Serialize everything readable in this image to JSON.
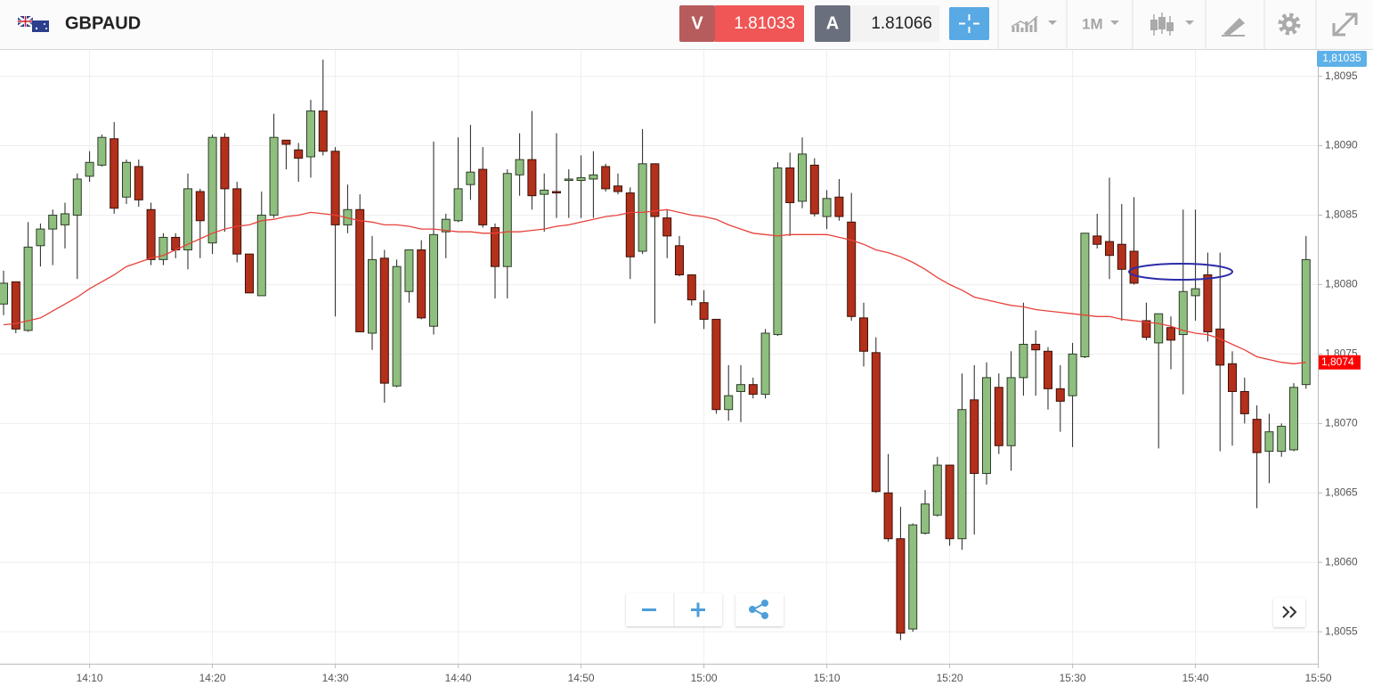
{
  "toolbar": {
    "symbol": "GBPAUD",
    "bid_label": "V",
    "bid": "1.81033",
    "ask_label": "A",
    "ask": "1.81066",
    "timeframe": "1M"
  },
  "chart_data": {
    "type": "candlestick",
    "categories": [
      "14:03",
      "14:04",
      "14:05",
      "14:06",
      "14:07",
      "14:08",
      "14:09",
      "14:10",
      "14:11",
      "14:12",
      "14:13",
      "14:14",
      "14:15",
      "14:16",
      "14:17",
      "14:18",
      "14:19",
      "14:20",
      "14:21",
      "14:22",
      "14:23",
      "14:24",
      "14:25",
      "14:26",
      "14:27",
      "14:28",
      "14:29",
      "14:30",
      "14:31",
      "14:32",
      "14:33",
      "14:34",
      "14:35",
      "14:36",
      "14:37",
      "14:38",
      "14:39",
      "14:40",
      "14:41",
      "14:42",
      "14:43",
      "14:44",
      "14:45",
      "14:46",
      "14:47",
      "14:48",
      "14:49",
      "14:50",
      "14:51",
      "14:52",
      "14:53",
      "14:54",
      "14:55",
      "14:56",
      "14:57",
      "14:58",
      "14:59",
      "15:00",
      "15:01",
      "15:02",
      "15:03",
      "15:04",
      "15:05",
      "15:06",
      "15:07",
      "15:08",
      "15:09",
      "15:10",
      "15:11",
      "15:12",
      "15:13",
      "15:14",
      "15:15",
      "15:16",
      "15:17",
      "15:18",
      "15:19",
      "15:20",
      "15:21",
      "15:22",
      "15:23",
      "15:24",
      "15:25",
      "15:26",
      "15:27",
      "15:28",
      "15:29",
      "15:30",
      "15:31",
      "15:32",
      "15:33",
      "15:34",
      "15:35",
      "15:36",
      "15:37",
      "15:38",
      "15:39",
      "15:40",
      "15:41",
      "15:42",
      "15:43",
      "15:44",
      "15:45",
      "15:46",
      "15:47",
      "15:48",
      "15:49"
    ],
    "open": [
      1.80786,
      1.80802,
      1.80767,
      1.80828,
      1.8084,
      1.80843,
      1.8085,
      1.80878,
      1.80886,
      1.80905,
      1.80863,
      1.80885,
      1.80854,
      1.80818,
      1.80834,
      1.80825,
      1.80867,
      1.8083,
      1.80906,
      1.80869,
      1.80822,
      1.80792,
      1.8085,
      1.80904,
      1.80897,
      1.80892,
      1.80925,
      1.80896,
      1.80843,
      1.80854,
      1.80765,
      1.80819,
      1.80727,
      1.80795,
      1.80825,
      1.8077,
      1.80838,
      1.80846,
      1.80872,
      1.80883,
      1.80841,
      1.80813,
      1.80879,
      1.8089,
      1.80865,
      1.80867,
      1.80875,
      1.80875,
      1.80876,
      1.80885,
      1.80871,
      1.80866,
      1.80824,
      1.80887,
      1.80848,
      1.80828,
      1.80807,
      1.80787,
      1.80775,
      1.8071,
      1.80723,
      1.80728,
      1.80721,
      1.80764,
      1.80884,
      1.8086,
      1.80886,
      1.80849,
      1.80863,
      1.80845,
      1.80776,
      1.80751,
      1.8065,
      1.80617,
      1.80552,
      1.80621,
      1.80634,
      1.8067,
      1.80617,
      1.80717,
      1.80664,
      1.80726,
      1.80684,
      1.80733,
      1.80757,
      1.80752,
      1.80725,
      1.8072,
      1.80748,
      1.80835,
      1.80831,
      1.80829,
      1.80824,
      1.80774,
      1.80758,
      1.80769,
      1.80764,
      1.80792,
      1.80807,
      1.80768,
      1.80743,
      1.80723,
      1.80703,
      1.8068,
      1.8068,
      1.80681,
      1.80728
    ],
    "high": [
      1.8081,
      1.80802,
      1.80845,
      1.80844,
      1.80854,
      1.80859,
      1.8088,
      1.80896,
      1.80908,
      1.80917,
      1.8089,
      1.8089,
      1.80859,
      1.80837,
      1.80837,
      1.8088,
      1.80869,
      1.80908,
      1.80909,
      1.80874,
      1.80822,
      1.80867,
      1.80923,
      1.80904,
      1.80902,
      1.80933,
      1.80962,
      1.80899,
      1.80872,
      1.80865,
      1.80835,
      1.80825,
      1.80818,
      1.80825,
      1.80832,
      1.80903,
      1.80851,
      1.80906,
      1.80915,
      1.80899,
      1.80844,
      1.80883,
      1.80909,
      1.80925,
      1.8088,
      1.80909,
      1.80883,
      1.80893,
      1.80896,
      1.80887,
      1.8088,
      1.8087,
      1.80912,
      1.80887,
      1.80854,
      1.80835,
      1.80807,
      1.80796,
      1.80775,
      1.80742,
      1.80742,
      1.80733,
      1.80768,
      1.80888,
      1.80895,
      1.80906,
      1.80891,
      1.80868,
      1.80876,
      1.80866,
      1.80787,
      1.80762,
      1.80678,
      1.8064,
      1.80628,
      1.80652,
      1.80676,
      1.8067,
      1.80736,
      1.80742,
      1.80744,
      1.80736,
      1.80752,
      1.80787,
      1.80767,
      1.80755,
      1.80742,
      1.80758,
      1.80837,
      1.80851,
      1.80877,
      1.80858,
      1.80863,
      1.80787,
      1.80779,
      1.80777,
      1.80854,
      1.80854,
      1.80823,
      1.80823,
      1.80752,
      1.80733,
      1.80713,
      1.80707,
      1.807,
      1.80729,
      1.80835
    ],
    "low": [
      1.80778,
      1.80765,
      1.80766,
      1.80813,
      1.80814,
      1.80826,
      1.80804,
      1.80874,
      1.80885,
      1.80851,
      1.80858,
      1.80856,
      1.80814,
      1.80814,
      1.80819,
      1.80811,
      1.80819,
      1.80822,
      1.80838,
      1.80816,
      1.80794,
      1.80792,
      1.80848,
      1.80883,
      1.80874,
      1.80877,
      1.80893,
      1.80777,
      1.80837,
      1.80766,
      1.80753,
      1.80715,
      1.80726,
      1.80787,
      1.80775,
      1.80764,
      1.80819,
      1.80845,
      1.80861,
      1.80841,
      1.8079,
      1.8079,
      1.80864,
      1.80854,
      1.80838,
      1.80848,
      1.80848,
      1.80848,
      1.80848,
      1.80867,
      1.80865,
      1.80804,
      1.80822,
      1.80772,
      1.80819,
      1.80806,
      1.80785,
      1.80768,
      1.80707,
      1.80702,
      1.80701,
      1.80718,
      1.80718,
      1.80763,
      1.80835,
      1.80855,
      1.80849,
      1.8084,
      1.80846,
      1.80774,
      1.80741,
      1.8065,
      1.80615,
      1.80544,
      1.8055,
      1.8062,
      1.80633,
      1.80612,
      1.80609,
      1.8062,
      1.80656,
      1.80678,
      1.80666,
      1.8072,
      1.8072,
      1.8071,
      1.80694,
      1.80683,
      1.80747,
      1.80826,
      1.80804,
      1.80774,
      1.808,
      1.8076,
      1.80682,
      1.80739,
      1.80721,
      1.80774,
      1.80759,
      1.8068,
      1.80684,
      1.807,
      1.80639,
      1.80657,
      1.80676,
      1.8068,
      1.80725
    ],
    "close": [
      1.80801,
      1.80768,
      1.80827,
      1.8084,
      1.8085,
      1.80851,
      1.80876,
      1.80888,
      1.80906,
      1.80855,
      1.80888,
      1.80861,
      1.80818,
      1.80834,
      1.80825,
      1.80869,
      1.80846,
      1.80906,
      1.80869,
      1.80822,
      1.80794,
      1.8085,
      1.80906,
      1.80901,
      1.80891,
      1.80925,
      1.80896,
      1.80843,
      1.80854,
      1.80766,
      1.80818,
      1.80729,
      1.80813,
      1.80825,
      1.80776,
      1.80836,
      1.80847,
      1.80869,
      1.80881,
      1.80843,
      1.80813,
      1.8088,
      1.8089,
      1.80864,
      1.80868,
      1.80866,
      1.80876,
      1.80877,
      1.80879,
      1.80869,
      1.80867,
      1.8082,
      1.80887,
      1.80849,
      1.80835,
      1.80807,
      1.80789,
      1.80775,
      1.8071,
      1.8072,
      1.80728,
      1.80721,
      1.80765,
      1.80884,
      1.80859,
      1.80894,
      1.80851,
      1.80862,
      1.80849,
      1.80777,
      1.80752,
      1.80651,
      1.80617,
      1.80549,
      1.80627,
      1.80642,
      1.8067,
      1.80617,
      1.8071,
      1.80664,
      1.80733,
      1.80684,
      1.80733,
      1.80757,
      1.80753,
      1.80725,
      1.80716,
      1.8075,
      1.80837,
      1.80829,
      1.80821,
      1.80811,
      1.80801,
      1.80762,
      1.80779,
      1.8076,
      1.80795,
      1.80797,
      1.80766,
      1.80742,
      1.80723,
      1.80707,
      1.80679,
      1.80694,
      1.80698,
      1.80726,
      1.80818
    ],
    "up_color": "#8fbf7f",
    "down_color": "#b3301b",
    "overlay": {
      "type": "line",
      "color": "#e8413a",
      "values": [
        1.80771,
        1.80772,
        1.80774,
        1.80776,
        1.80781,
        1.80786,
        1.80791,
        1.80797,
        1.80802,
        1.80807,
        1.80813,
        1.80816,
        1.80819,
        1.80821,
        1.80825,
        1.80829,
        1.80833,
        1.80837,
        1.8084,
        1.80842,
        1.80843,
        1.80846,
        1.80847,
        1.80849,
        1.8085,
        1.80852,
        1.80851,
        1.8085,
        1.80848,
        1.80846,
        1.80845,
        1.80843,
        1.80843,
        1.80842,
        1.8084,
        1.8084,
        1.80839,
        1.80838,
        1.80838,
        1.80837,
        1.80837,
        1.80838,
        1.80838,
        1.80839,
        1.8084,
        1.80842,
        1.80843,
        1.80845,
        1.80847,
        1.80849,
        1.8085,
        1.80852,
        1.80852,
        1.80853,
        1.80854,
        1.80852,
        1.8085,
        1.80849,
        1.80847,
        1.80843,
        1.8084,
        1.80837,
        1.80836,
        1.80835,
        1.80836,
        1.80836,
        1.80836,
        1.80836,
        1.80834,
        1.80832,
        1.80829,
        1.80825,
        1.80823,
        1.8082,
        1.80816,
        1.80811,
        1.80805,
        1.808,
        1.80796,
        1.80791,
        1.80789,
        1.80787,
        1.80785,
        1.80784,
        1.80782,
        1.80781,
        1.8078,
        1.80779,
        1.80778,
        1.80777,
        1.80777,
        1.80775,
        1.80774,
        1.80773,
        1.80772,
        1.8077,
        1.80767,
        1.80765,
        1.80764,
        1.80761,
        1.80757,
        1.80753,
        1.80748,
        1.80746,
        1.80744,
        1.80743,
        1.80744
      ],
      "last_label": {
        "value": 1.80744,
        "label": "1,8074"
      }
    },
    "price_marker": {
      "value": 1.81035,
      "label": "1,81035"
    },
    "ylim": [
      1.80527,
      1.80969
    ],
    "yticks": [
      {
        "value": 1.8055,
        "label": "1,8055"
      },
      {
        "value": 1.806,
        "label": "1,8060"
      },
      {
        "value": 1.8065,
        "label": "1,8065"
      },
      {
        "value": 1.807,
        "label": "1,8070"
      },
      {
        "value": 1.8075,
        "label": "1,8075"
      },
      {
        "value": 1.808,
        "label": "1,8080"
      },
      {
        "value": 1.8085,
        "label": "1,8085"
      },
      {
        "value": 1.809,
        "label": "1,8090"
      },
      {
        "value": 1.8095,
        "label": "1,8095"
      }
    ],
    "xticks": [
      "14:10",
      "14:20",
      "14:30",
      "14:40",
      "14:50",
      "15:00",
      "15:10",
      "15:20",
      "15:30",
      "15:40",
      "15:50"
    ],
    "grid": true
  }
}
